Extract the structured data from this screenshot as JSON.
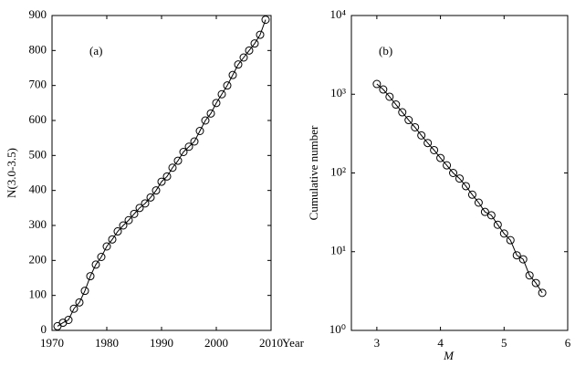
{
  "chart_data": [
    {
      "type": "line",
      "annotation": "(a)",
      "x_label": "Year",
      "y_label": "N(3.0-3.5)",
      "xlim": [
        1970,
        2010
      ],
      "ylim": [
        0,
        900
      ],
      "xticks": [
        1970,
        1980,
        1990,
        2000,
        2010
      ],
      "yticks": [
        0,
        100,
        200,
        300,
        400,
        500,
        600,
        700,
        800,
        900
      ],
      "x": [
        1971,
        1972,
        1973,
        1974,
        1975,
        1976,
        1977,
        1978,
        1979,
        1980,
        1981,
        1982,
        1983,
        1984,
        1985,
        1986,
        1987,
        1988,
        1989,
        1990,
        1991,
        1992,
        1993,
        1994,
        1995,
        1996,
        1997,
        1998,
        1999,
        2000,
        2001,
        2002,
        2003,
        2004,
        2005,
        2006,
        2007,
        2008,
        2009
      ],
      "values": [
        12,
        22,
        30,
        62,
        80,
        113,
        155,
        188,
        210,
        240,
        260,
        283,
        300,
        315,
        333,
        350,
        363,
        380,
        400,
        425,
        440,
        465,
        485,
        510,
        525,
        540,
        570,
        600,
        620,
        650,
        675,
        700,
        730,
        760,
        780,
        800,
        820,
        845,
        888
      ],
      "color": "#000000",
      "log_y": false
    },
    {
      "type": "line",
      "annotation": "(b)",
      "x_label": "M",
      "y_label": "Cumulative number",
      "xlim": [
        2.6,
        6
      ],
      "ylim": [
        1,
        10000
      ],
      "xticks": [
        3,
        4,
        5,
        6
      ],
      "yticks": [
        {
          "value": 1,
          "label": "10⁰"
        },
        {
          "value": 10,
          "label": "10¹"
        },
        {
          "value": 100,
          "label": "10²"
        },
        {
          "value": 1000,
          "label": "10³"
        },
        {
          "value": 10000,
          "label": "10⁴"
        }
      ],
      "x": [
        3.0,
        3.1,
        3.2,
        3.3,
        3.4,
        3.5,
        3.6,
        3.7,
        3.8,
        3.9,
        4.0,
        4.1,
        4.2,
        4.3,
        4.4,
        4.5,
        4.6,
        4.7,
        4.8,
        4.9,
        5.0,
        5.1,
        5.2,
        5.3,
        5.4,
        5.5,
        5.6
      ],
      "values": [
        1350,
        1150,
        930,
        740,
        590,
        470,
        380,
        300,
        240,
        195,
        155,
        125,
        100,
        85,
        68,
        53,
        42,
        32,
        29,
        22,
        17,
        14,
        9,
        8,
        5,
        4,
        3
      ],
      "color": "#000000",
      "log_y": true
    }
  ]
}
